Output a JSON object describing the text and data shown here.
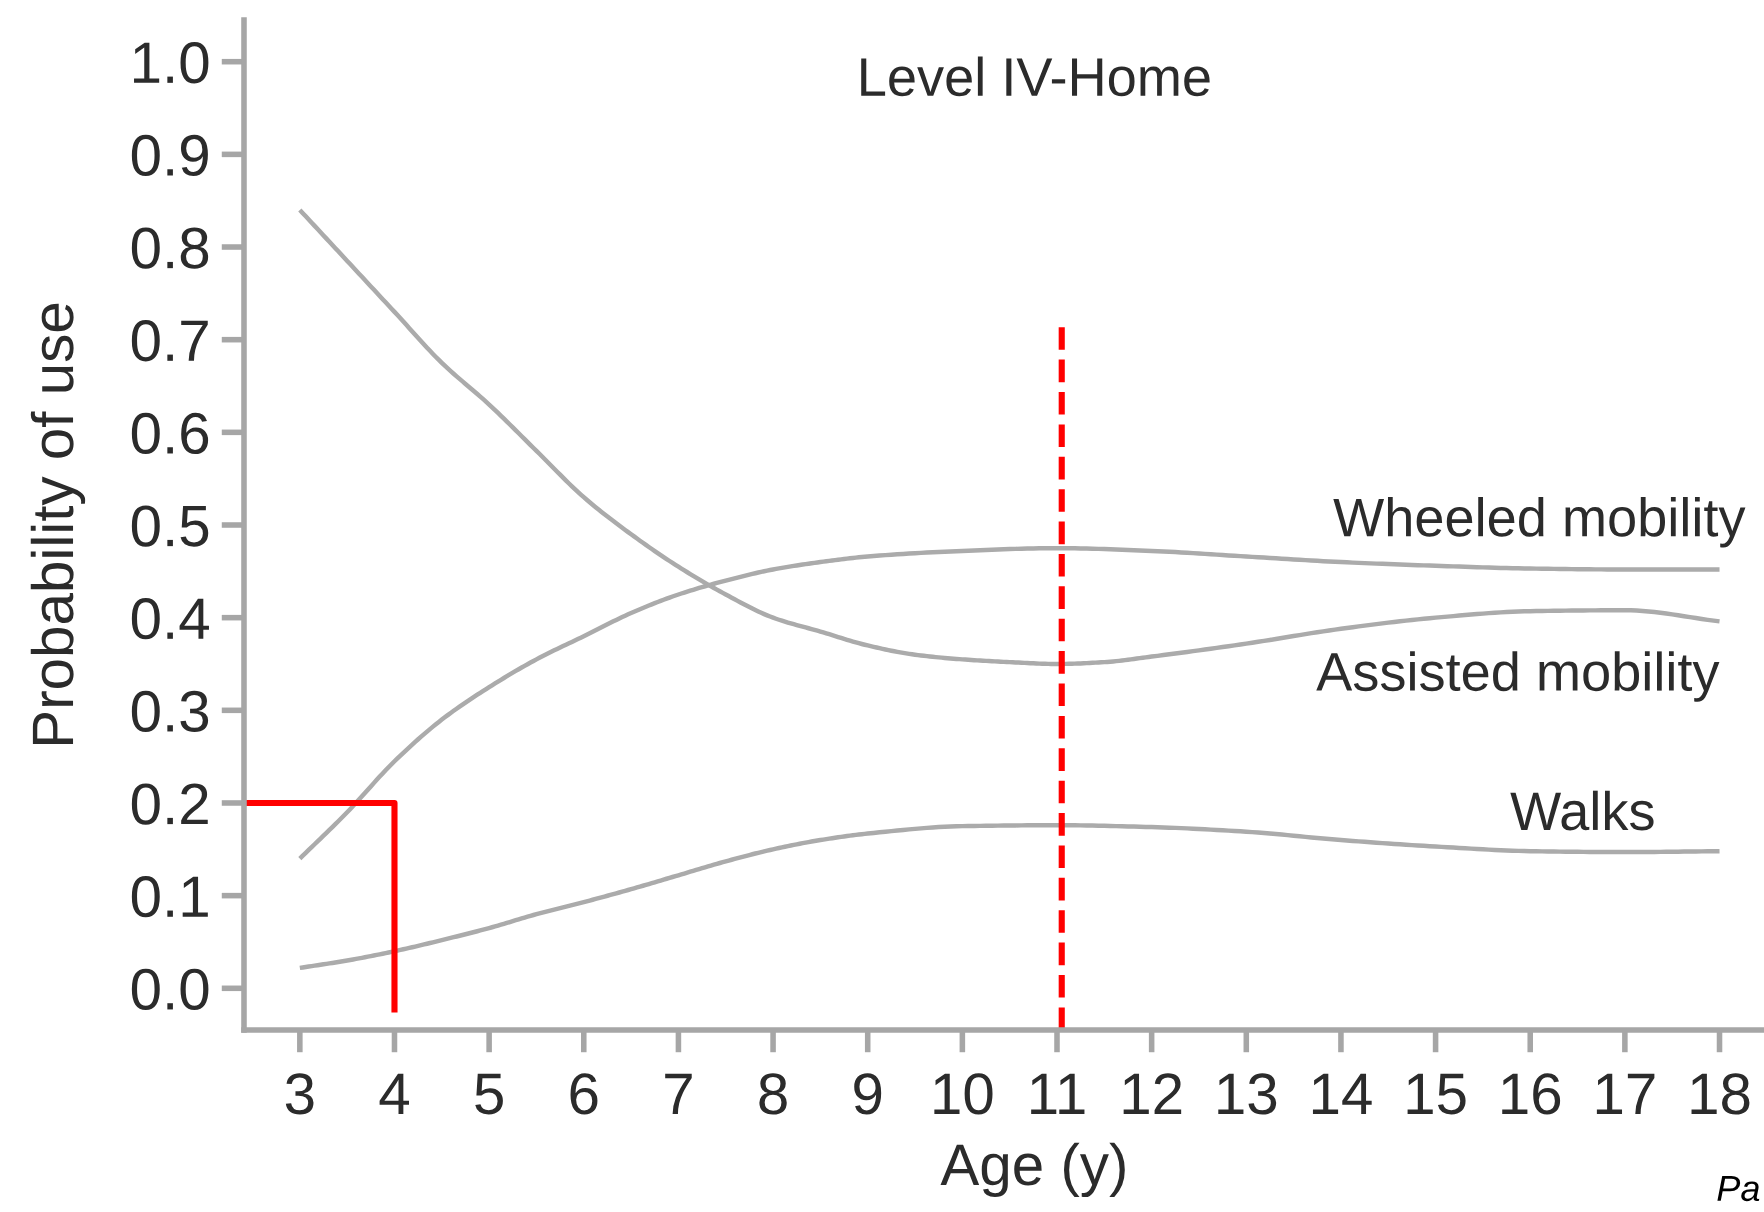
{
  "chart_data": {
    "type": "line",
    "title": "Level IV-Home",
    "xlabel": "Age (y)",
    "ylabel": "Probability of use",
    "xlim": [
      2.41,
      18.47
    ],
    "ylim": [
      -0.045,
      1.045
    ],
    "xticks": [
      3,
      4,
      5,
      6,
      7,
      8,
      9,
      10,
      11,
      12,
      13,
      14,
      15,
      16,
      17,
      18
    ],
    "yticks": [
      {
        "value": 0,
        "label": "0.0"
      },
      {
        "value": 0.1,
        "label": "0.1"
      },
      {
        "value": 0.2,
        "label": "0.2"
      },
      {
        "value": 0.3,
        "label": "0.3"
      },
      {
        "value": 0.4,
        "label": "0.4"
      },
      {
        "value": 0.5,
        "label": "0.5"
      },
      {
        "value": 0.6,
        "label": "0.6"
      },
      {
        "value": 0.7,
        "label": "0.7"
      },
      {
        "value": 0.8,
        "label": "0.8"
      },
      {
        "value": 0.9,
        "label": "0.9"
      },
      {
        "value": 1.0,
        "label": "1.0"
      }
    ],
    "series": [
      {
        "name": "Wheeled mobility",
        "color": "#ababab",
        "x": [
          3,
          3.5,
          4,
          4.5,
          5,
          5.5,
          6,
          6.5,
          7,
          7.5,
          8,
          8.5,
          9,
          10,
          11,
          12,
          13,
          14,
          15,
          16,
          17,
          18
        ],
        "values": [
          0.14,
          0.19,
          0.245,
          0.29,
          0.325,
          0.355,
          0.38,
          0.405,
          0.425,
          0.44,
          0.452,
          0.46,
          0.466,
          0.472,
          0.475,
          0.472,
          0.466,
          0.46,
          0.456,
          0.453,
          0.452,
          0.452
        ]
      },
      {
        "name": "Assisted mobility",
        "color": "#ababab",
        "x": [
          3,
          3.5,
          4,
          4.5,
          5,
          5.5,
          6,
          6.5,
          7,
          7.5,
          8,
          8.5,
          9,
          9.5,
          10,
          10.5,
          11,
          11.5,
          12,
          13,
          14,
          15,
          16,
          17,
          18
        ],
        "values": [
          0.84,
          0.785,
          0.73,
          0.675,
          0.63,
          0.58,
          0.53,
          0.49,
          0.455,
          0.425,
          0.4,
          0.385,
          0.37,
          0.36,
          0.355,
          0.352,
          0.35,
          0.352,
          0.358,
          0.372,
          0.388,
          0.4,
          0.407,
          0.408,
          0.396
        ]
      },
      {
        "name": "Walks",
        "color": "#ababab",
        "x": [
          3,
          3.5,
          4,
          4.5,
          5,
          5.5,
          6,
          6.5,
          7,
          7.5,
          8,
          8.5,
          9,
          10,
          11,
          12,
          13,
          14,
          15,
          16,
          17,
          18
        ],
        "values": [
          0.022,
          0.03,
          0.04,
          0.052,
          0.065,
          0.08,
          0.093,
          0.107,
          0.122,
          0.137,
          0.15,
          0.16,
          0.167,
          0.175,
          0.176,
          0.174,
          0.169,
          0.16,
          0.153,
          0.148,
          0.147,
          0.148
        ]
      },
      {
        "color": "#ff0000",
        "x": [
          2.41,
          4,
          4
        ],
        "values": [
          0.2,
          0.2,
          -0.026
        ]
      },
      {
        "color": "#ff0000",
        "line_style": "dashed",
        "x": [
          11.05,
          11.05
        ],
        "values": [
          -0.045,
          0.72
        ]
      }
    ],
    "annotations": [
      "Pa"
    ]
  }
}
